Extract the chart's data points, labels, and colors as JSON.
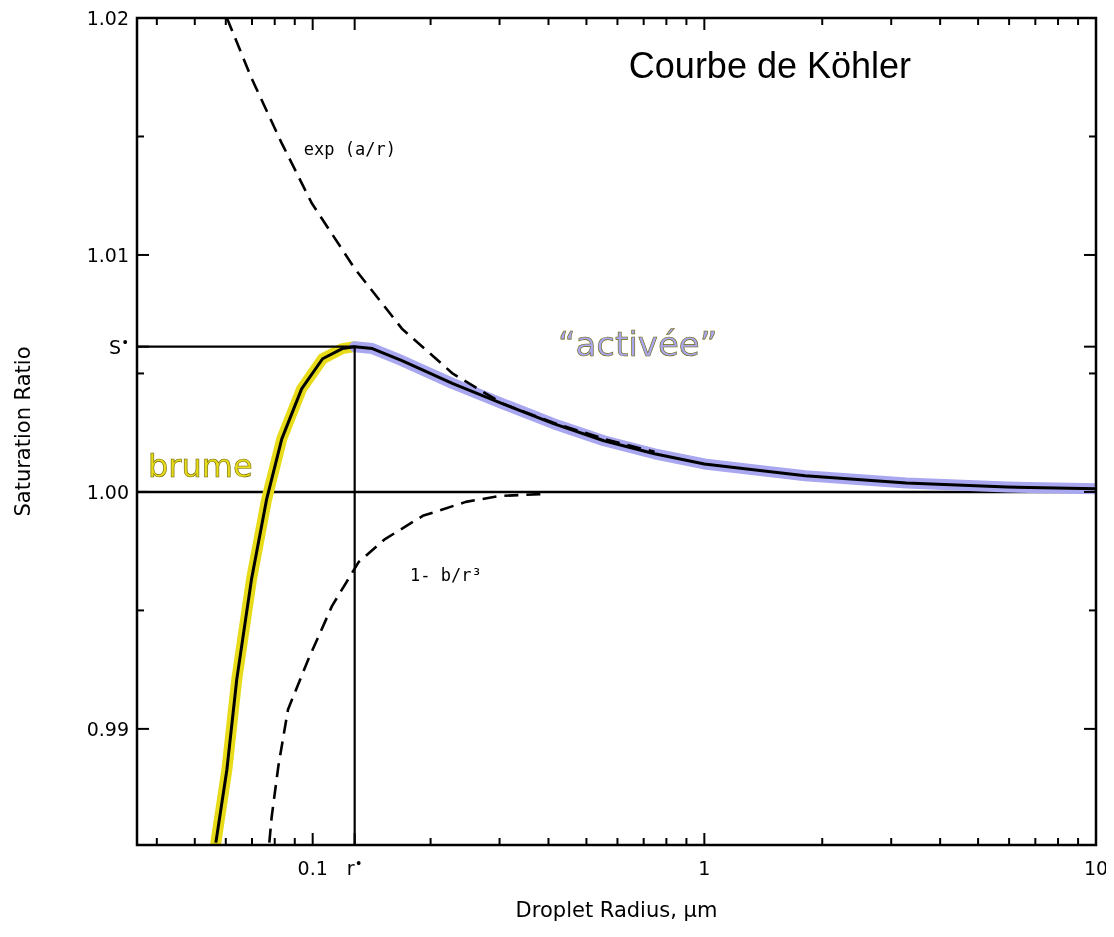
{
  "chart_data": {
    "type": "line",
    "title": "Courbe de Köhler",
    "xlabel": "Droplet Radius, μm",
    "ylabel": "Saturation Ratio",
    "log": "x",
    "grid": false,
    "legend": false,
    "xlim": [
      0.0356,
      10
    ],
    "ylim": [
      0.9851,
      1.02
    ],
    "xticks": [
      {
        "value": 0.04,
        "label": null
      },
      {
        "value": 0.05,
        "label": null
      },
      {
        "value": 0.06,
        "label": null
      },
      {
        "value": 0.07,
        "label": null
      },
      {
        "value": 0.08,
        "label": null
      },
      {
        "value": 0.09,
        "label": null
      },
      {
        "value": 0.1,
        "label": "0.1"
      },
      {
        "value": 0.128,
        "label": "r$^{•}$"
      },
      {
        "value": 0.2,
        "label": null
      },
      {
        "value": 0.3,
        "label": null
      },
      {
        "value": 0.4,
        "label": null
      },
      {
        "value": 0.5,
        "label": null
      },
      {
        "value": 0.6,
        "label": null
      },
      {
        "value": 0.7,
        "label": null
      },
      {
        "value": 0.8,
        "label": null
      },
      {
        "value": 0.9,
        "label": null
      },
      {
        "value": 1,
        "label": "1"
      },
      {
        "value": 2,
        "label": null
      },
      {
        "value": 3,
        "label": null
      },
      {
        "value": 4,
        "label": null
      },
      {
        "value": 5,
        "label": null
      },
      {
        "value": 6,
        "label": null
      },
      {
        "value": 7,
        "label": null
      },
      {
        "value": 8,
        "label": null
      },
      {
        "value": 9,
        "label": null
      },
      {
        "value": 10,
        "label": "10"
      }
    ],
    "yticks": [
      {
        "value": 0.99,
        "label": "0.99"
      },
      {
        "value": 0.995,
        "label": null
      },
      {
        "value": 1.0,
        "label": "1.00"
      },
      {
        "value": 1.005,
        "label": null
      },
      {
        "value": 1.00613,
        "label": "S$^{•}$"
      },
      {
        "value": 1.01,
        "label": "1.01"
      },
      {
        "value": 1.015,
        "label": null
      },
      {
        "value": 1.02,
        "label": "1.02"
      }
    ],
    "ref_lines": [
      {
        "axis": "y",
        "value": 1.0,
        "color": "#000000"
      }
    ],
    "series": [
      {
        "name": "brume",
        "color": "#e8dc1a",
        "x": [
          0.0566,
          0.0604,
          0.064,
          0.0698,
          0.0763,
          0.0834,
          0.0937,
          0.106,
          0.119,
          0.128
        ],
        "values": [
          0.9852,
          0.98829,
          0.99209,
          0.99632,
          0.9997,
          1.00224,
          1.00435,
          1.00562,
          1.00605,
          1.00613
        ]
      },
      {
        "name": "“activée”",
        "color": "#a9a7f0",
        "x": [
          0.128,
          0.142,
          0.169,
          0.228,
          0.306,
          0.412,
          0.554,
          0.746,
          1.0,
          1.81,
          3.28,
          5.93,
          10
        ],
        "values": [
          1.00613,
          1.00605,
          1.00554,
          1.00457,
          1.00372,
          1.00288,
          1.00216,
          1.00161,
          1.00118,
          1.00068,
          1.00038,
          1.00021,
          1.00013
        ]
      },
      {
        "color": "#000000",
        "x": [
          0.0566,
          0.0604,
          0.064,
          0.0698,
          0.0763,
          0.0834,
          0.0937,
          0.106,
          0.119,
          0.128,
          0.142,
          0.169,
          0.228,
          0.306,
          0.412,
          0.554,
          0.746,
          1.0,
          1.81,
          3.28,
          5.93,
          10
        ],
        "values": [
          0.9852,
          0.98829,
          0.99209,
          0.99632,
          0.9997,
          1.00224,
          1.00435,
          1.00562,
          1.00605,
          1.00613,
          1.00605,
          1.00554,
          1.00457,
          1.00372,
          1.00288,
          1.00216,
          1.00161,
          1.00118,
          1.00068,
          1.00038,
          1.00021,
          1.00013
        ]
      },
      {
        "name": "exp (a/r)",
        "color": "#000000",
        "line_style": "dashed",
        "x": [
          0.0604,
          0.0698,
          0.0834,
          0.0995,
          0.128,
          0.169,
          0.228,
          0.306,
          0.412,
          0.554,
          0.746
        ],
        "values": [
          1.02,
          1.01746,
          1.01471,
          1.01218,
          1.00943,
          1.00689,
          1.00499,
          1.00372,
          1.00292,
          1.00224,
          1.00169
        ]
      },
      {
        "name": "1- b/r³",
        "color": "#000000",
        "line_style": "dashed",
        "x": [
          0.0775,
          0.0786,
          0.0817,
          0.0865,
          0.0975,
          0.112,
          0.131,
          0.153,
          0.191,
          0.246,
          0.301,
          0.395
        ],
        "values": [
          0.9852,
          0.9863,
          0.98841,
          0.99082,
          0.99294,
          0.99518,
          0.99704,
          0.99801,
          0.99899,
          0.99958,
          0.99983,
          0.99992
        ]
      },
      {
        "color": "#000000",
        "x": [
          0.0356,
          0.128,
          0.128
        ],
        "values": [
          1.00613,
          1.00613,
          0.9851
        ]
      }
    ]
  }
}
